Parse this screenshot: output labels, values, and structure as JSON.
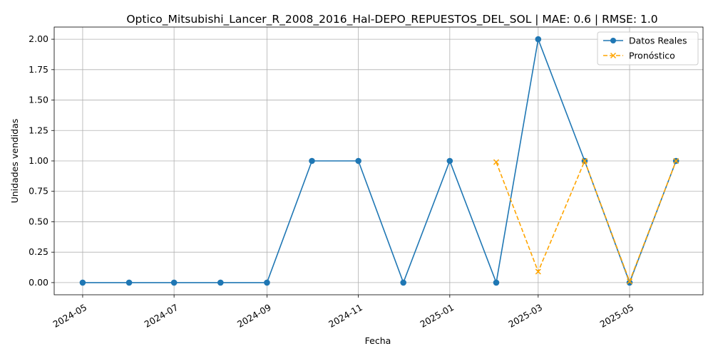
{
  "chart_data": {
    "type": "line",
    "title": "Optico_Mitsubishi_Lancer_R_2008_2016_Hal-DEPO_REPUESTOS_DEL_SOL | MAE: 0.6 | RMSE: 1.0",
    "xlabel": "Fecha",
    "ylabel": "Unidades vendidas",
    "x_range": [
      "2024-04-12",
      "2025-06-19"
    ],
    "ylim": [
      -0.1,
      2.1
    ],
    "x_ticks": [
      "2024-05",
      "2024-07",
      "2024-09",
      "2024-11",
      "2025-01",
      "2025-03",
      "2025-05"
    ],
    "y_ticks": [
      "0.00",
      "0.25",
      "0.50",
      "0.75",
      "1.00",
      "1.25",
      "1.50",
      "1.75",
      "2.00"
    ],
    "grid": true,
    "legend_position": "top-right",
    "series": [
      {
        "name": "Datos Reales",
        "color": "#1f77b4",
        "marker": "circle",
        "line_style": "solid",
        "x": [
          "2024-05-01",
          "2024-06-01",
          "2024-07-01",
          "2024-08-01",
          "2024-09-01",
          "2024-10-01",
          "2024-11-01",
          "2024-12-01",
          "2025-01-01",
          "2025-02-01",
          "2025-03-01",
          "2025-04-01",
          "2025-05-01",
          "2025-06-01"
        ],
        "values": [
          0,
          0,
          0,
          0,
          0,
          1,
          1,
          0,
          1,
          0,
          2,
          1,
          0,
          1
        ]
      },
      {
        "name": "Pronóstico",
        "color": "#ffa500",
        "marker": "x",
        "line_style": "dashed",
        "x": [
          "2025-02-01",
          "2025-03-01",
          "2025-04-01",
          "2025-05-01",
          "2025-06-01"
        ],
        "values": [
          0.99,
          0.09,
          1.0,
          0.01,
          1.0
        ]
      }
    ]
  }
}
